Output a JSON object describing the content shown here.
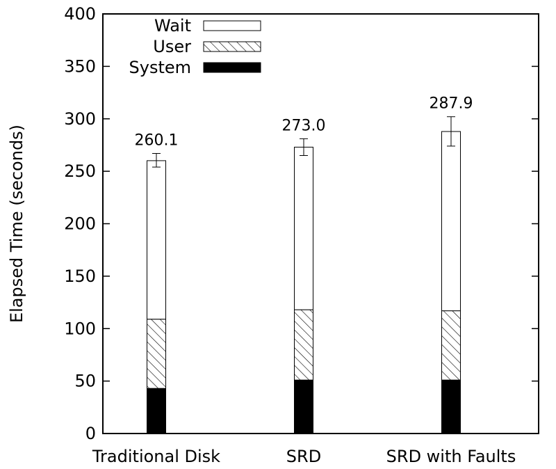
{
  "chart_data": {
    "type": "bar",
    "stacked": true,
    "categories": [
      "Traditional Disk",
      "SRD",
      "SRD with Faults"
    ],
    "series": [
      {
        "name": "System",
        "values": [
          43,
          51,
          51
        ],
        "fill": "solid",
        "color": "#000000"
      },
      {
        "name": "User",
        "values": [
          66,
          67,
          66
        ],
        "fill": "hatched",
        "color": "#000000"
      },
      {
        "name": "Wait",
        "values": [
          151.1,
          155.0,
          170.9
        ],
        "fill": "empty",
        "color": "#ffffff"
      }
    ],
    "totals": [
      260.1,
      273.0,
      287.9
    ],
    "total_labels": [
      "260.1",
      "273.0",
      "287.9"
    ],
    "error_bars": [
      {
        "low": 254,
        "high": 267
      },
      {
        "low": 265,
        "high": 281
      },
      {
        "low": 274,
        "high": 302
      }
    ],
    "ylabel": "Elapsed Time (seconds)",
    "xlabel": "",
    "title": "",
    "ylim": [
      0,
      400
    ],
    "yticks": [
      0,
      50,
      100,
      150,
      200,
      250,
      300,
      350,
      400
    ],
    "grid": false,
    "legend_position": "top-left",
    "legend_order": [
      "Wait",
      "User",
      "System"
    ]
  }
}
